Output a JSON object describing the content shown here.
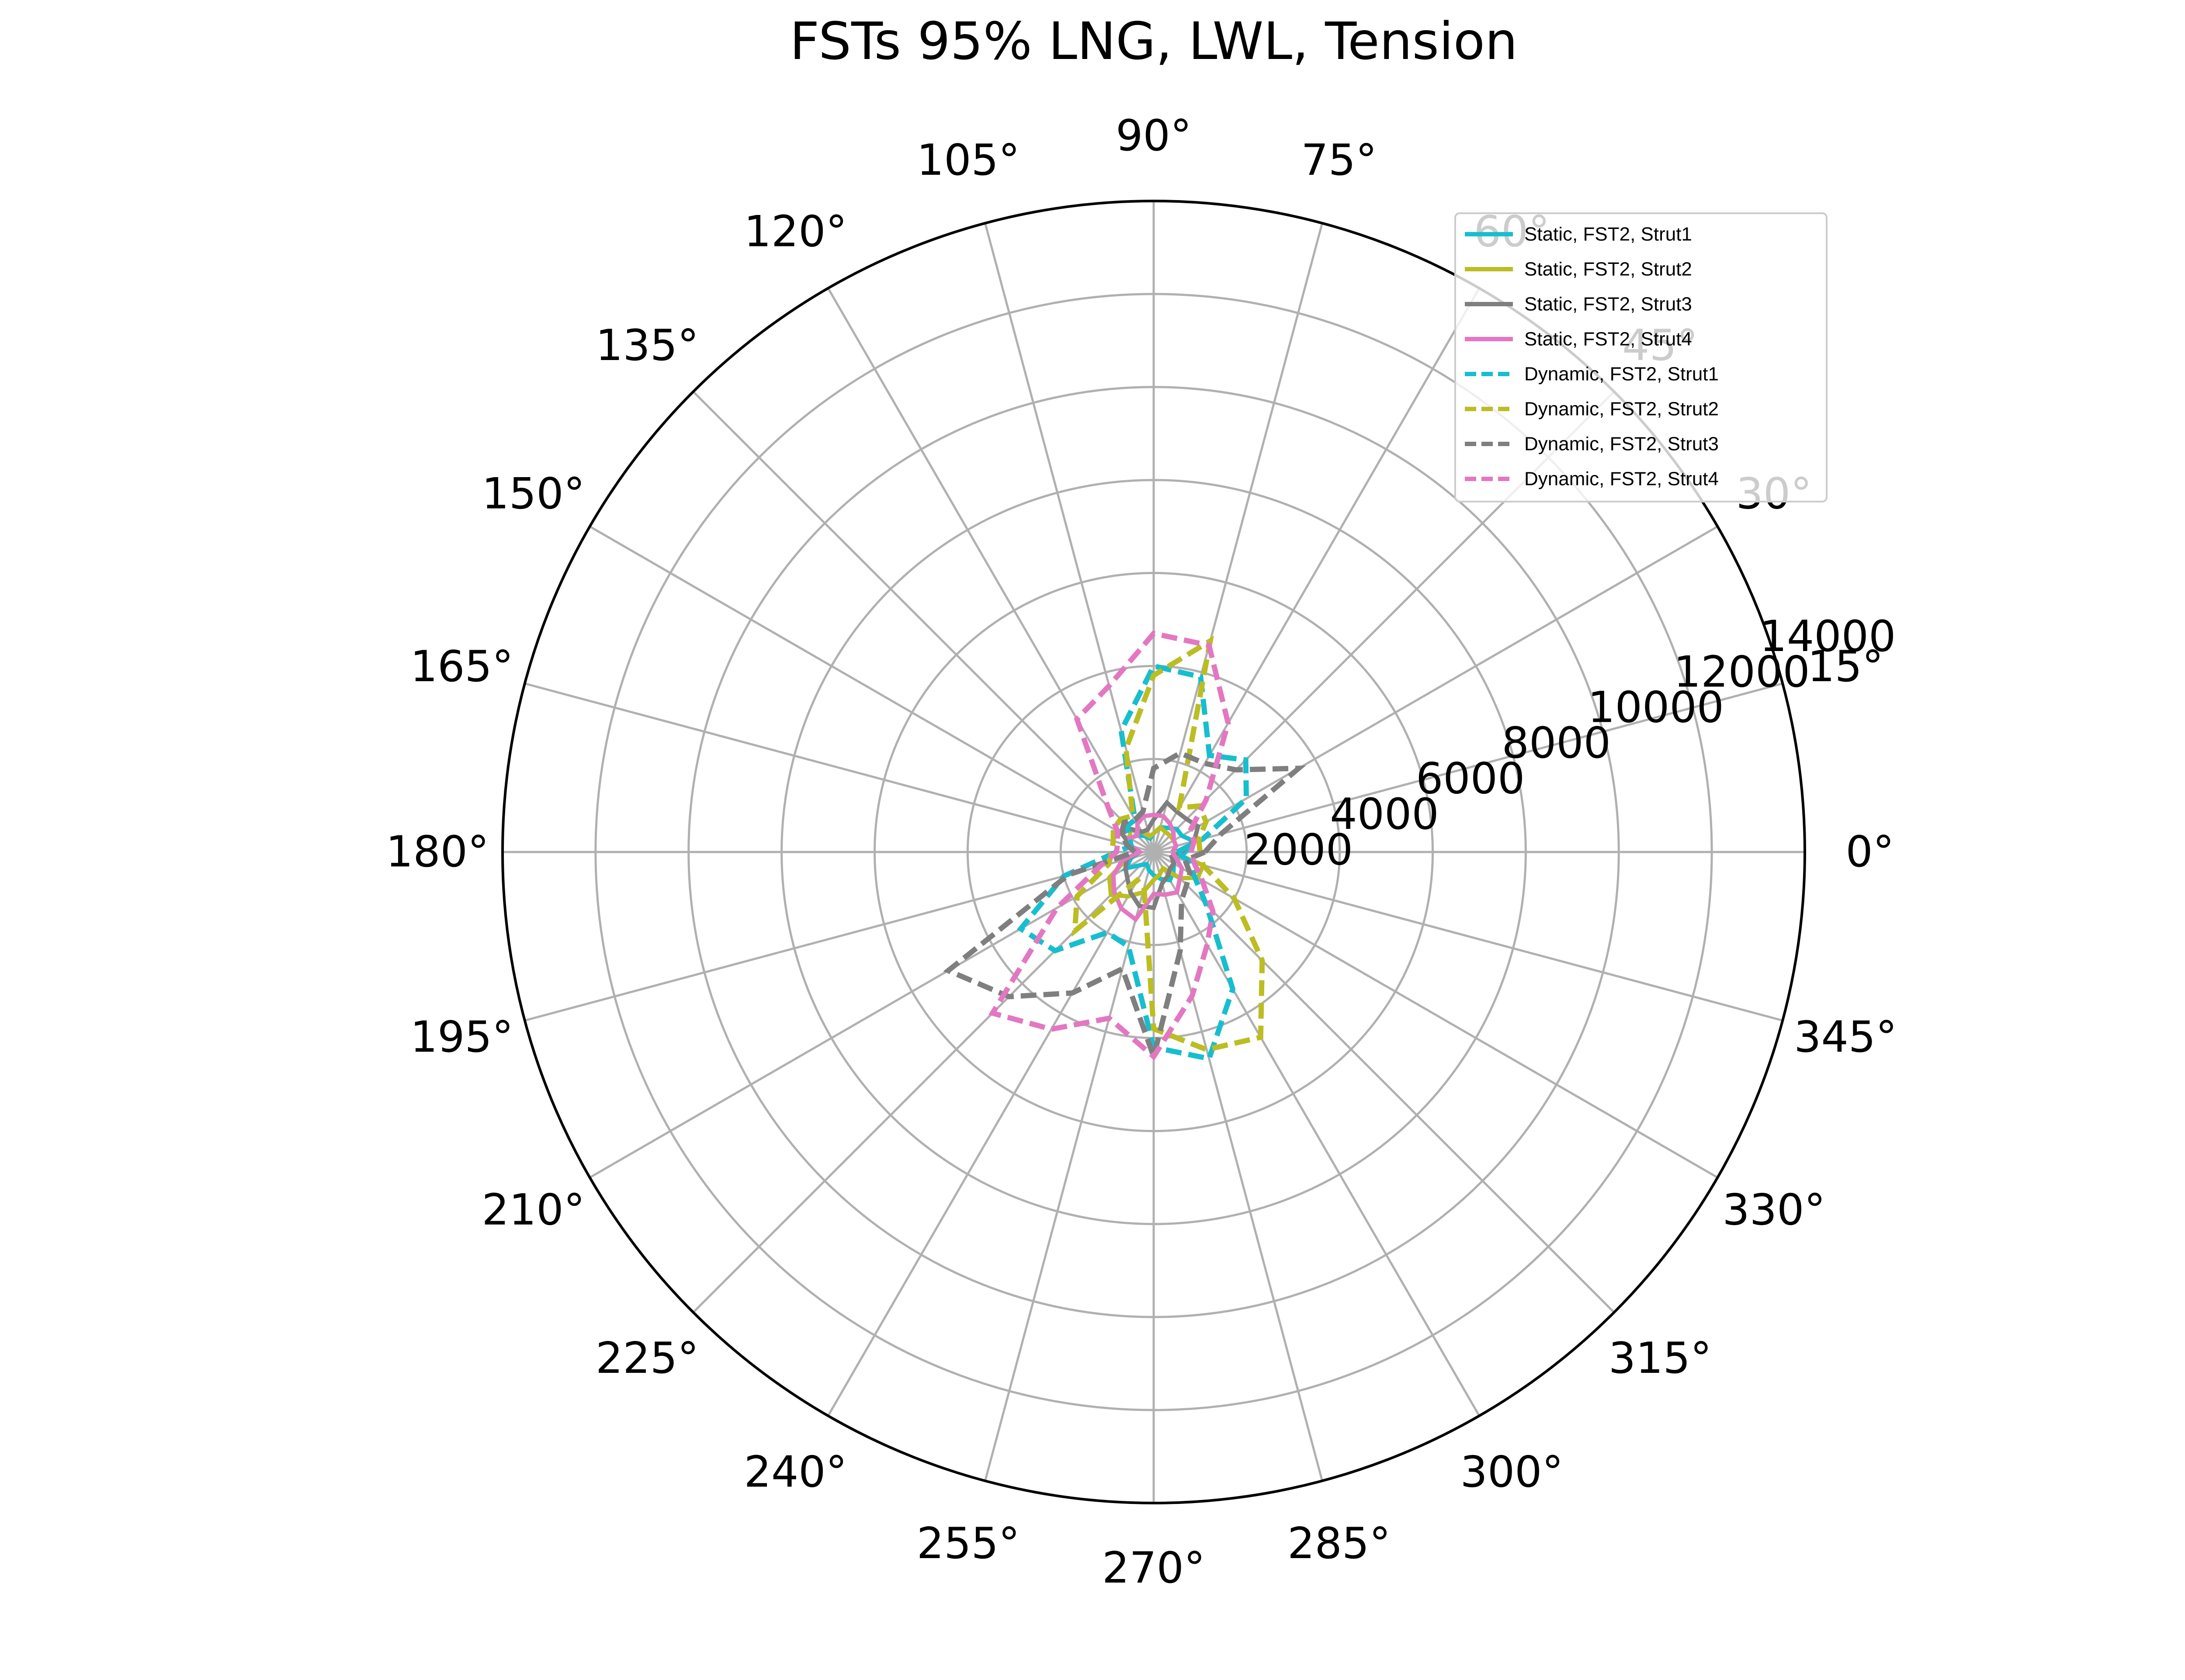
{
  "chart_data": {
    "type": "polar-line",
    "title": "FSTs 95% LNG, LWL, Tension",
    "theta_unit": "deg",
    "theta_ticks": [
      0,
      15,
      30,
      45,
      60,
      75,
      90,
      105,
      120,
      135,
      150,
      165,
      180,
      195,
      210,
      225,
      240,
      255,
      270,
      285,
      300,
      315,
      330,
      345
    ],
    "theta_tick_labels": [
      "0°",
      "15°",
      "30°",
      "45°",
      "60°",
      "75°",
      "90°",
      "105°",
      "120°",
      "135°",
      "150°",
      "165°",
      "180°",
      "195°",
      "210°",
      "225°",
      "240°",
      "255°",
      "270°",
      "285°",
      "300°",
      "315°",
      "330°",
      "345°"
    ],
    "r_ticks": [
      2000,
      4000,
      6000,
      8000,
      10000,
      12000,
      14000
    ],
    "r_tick_labels": [
      "2000",
      "4000",
      "6000",
      "8000",
      "10000",
      "12000",
      "14000"
    ],
    "rlim": [
      0,
      14000
    ],
    "grid": true,
    "legend_position": "top-right",
    "theta": [
      0,
      15,
      30,
      45,
      60,
      75,
      90,
      105,
      120,
      135,
      150,
      165,
      180,
      195,
      210,
      225,
      240,
      255,
      270,
      285,
      300,
      315,
      330,
      345
    ],
    "series": [
      {
        "name": "Static, FST2, Strut1",
        "color": "#17becf",
        "dash": "solid",
        "r": [
          700,
          900,
          700,
          700,
          600,
          550,
          400,
          300,
          400,
          500,
          600,
          500,
          300,
          500,
          700,
          400,
          300,
          400,
          500,
          600,
          700,
          600,
          500,
          500
        ]
      },
      {
        "name": "Static, FST2, Strut2",
        "color": "#bcbd22",
        "dash": "solid",
        "r": [
          400,
          500,
          500,
          500,
          500,
          550,
          400,
          350,
          500,
          700,
          600,
          500,
          300,
          600,
          1100,
          1300,
          1100,
          900,
          600,
          500,
          400,
          800,
          1100,
          1100
        ]
      },
      {
        "name": "Static, FST2, Strut3",
        "color": "#7f7f7f",
        "dash": "solid",
        "r": [
          600,
          900,
          1100,
          1000,
          1000,
          1100,
          700,
          500,
          500,
          700,
          800,
          500,
          300,
          600,
          700,
          800,
          1000,
          1200,
          1200,
          700,
          600,
          500,
          500,
          400
        ]
      },
      {
        "name": "Static, FST2, Strut4",
        "color": "#e377c2",
        "dash": "solid",
        "r": [
          400,
          500,
          500,
          600,
          700,
          800,
          800,
          800,
          700,
          500,
          600,
          500,
          300,
          700,
          1000,
          1200,
          1400,
          1500,
          900,
          950,
          1000,
          800,
          700,
          500
        ]
      },
      {
        "name": "Dynamic, FST2, Strut1",
        "color": "#17becf",
        "dash": "dashed",
        "r": [
          500,
          1100,
          2300,
          2800,
          2400,
          3900,
          4000,
          2700,
          800,
          800,
          600,
          500,
          800,
          2000,
          3300,
          3000,
          2000,
          2100,
          4200,
          4600,
          3400,
          1600,
          1000,
          800
        ]
      },
      {
        "name": "Dynamic, FST2, Strut2",
        "color": "#bcbd22",
        "dash": "dashed",
        "r": [
          1000,
          1000,
          1300,
          1400,
          1100,
          4700,
          3800,
          2300,
          900,
          1000,
          1000,
          900,
          900,
          1000,
          1900,
          2400,
          700,
          800,
          3800,
          4400,
          4600,
          3300,
          2000,
          1100
        ]
      },
      {
        "name": "Dynamic, FST2, Strut3",
        "color": "#7f7f7f",
        "dash": "dashed",
        "r": [
          1100,
          1500,
          3600,
          2500,
          2200,
          2200,
          1800,
          900,
          800,
          900,
          800,
          600,
          400,
          1900,
          5100,
          4400,
          3500,
          2600,
          4400,
          2200,
          1200,
          1000,
          900,
          700
        ]
      },
      {
        "name": "Dynamic, FST2, Strut4",
        "color": "#e377c2",
        "dash": "dashed",
        "r": [
          800,
          900,
          900,
          1600,
          3200,
          4600,
          4700,
          3700,
          3300,
          1400,
          900,
          800,
          800,
          1200,
          2400,
          4900,
          4400,
          3700,
          4400,
          3200,
          2300,
          1800,
          1200,
          900
        ]
      }
    ]
  }
}
